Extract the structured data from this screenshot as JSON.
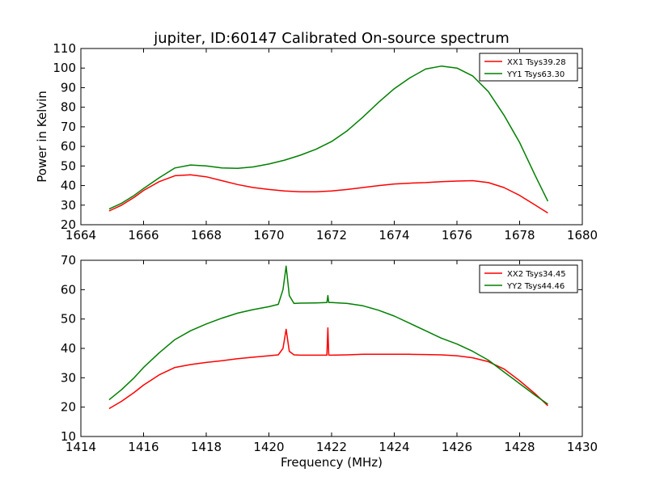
{
  "chart_data": [
    {
      "type": "line",
      "title": "jupiter, ID:60147 Calibrated On-source spectrum",
      "xlabel": "",
      "ylabel": "Power in Kelvin",
      "xlim": [
        1664,
        1680
      ],
      "ylim": [
        20,
        110
      ],
      "xticks": [
        1664,
        1666,
        1668,
        1670,
        1672,
        1674,
        1676,
        1678,
        1680
      ],
      "yticks": [
        20,
        30,
        40,
        50,
        60,
        70,
        80,
        90,
        100,
        110
      ],
      "grid": false,
      "legend_position": "top-right",
      "series": [
        {
          "name": "XX1 Tsys39.28",
          "color": "#ff0000",
          "x": [
            1664.9,
            1665.3,
            1665.7,
            1666.0,
            1666.5,
            1667.0,
            1667.5,
            1668.0,
            1668.5,
            1669.0,
            1669.5,
            1670.0,
            1670.5,
            1671.0,
            1671.5,
            1672.0,
            1672.5,
            1673.0,
            1673.5,
            1674.0,
            1674.5,
            1675.0,
            1675.5,
            1676.0,
            1676.5,
            1677.0,
            1677.5,
            1678.0,
            1678.5,
            1678.9
          ],
          "y": [
            27,
            30,
            34,
            37.5,
            42,
            45,
            45.5,
            44.5,
            42.5,
            40.5,
            39,
            38,
            37.2,
            36.8,
            36.8,
            37.2,
            38,
            39,
            40,
            40.8,
            41.2,
            41.5,
            42,
            42.3,
            42.5,
            41.5,
            39,
            35,
            30,
            26
          ]
        },
        {
          "name": "YY1 Tsys63.30",
          "color": "#008000",
          "x": [
            1664.9,
            1665.3,
            1665.7,
            1666.0,
            1666.5,
            1667.0,
            1667.5,
            1668.0,
            1668.5,
            1669.0,
            1669.5,
            1670.0,
            1670.5,
            1671.0,
            1671.5,
            1672.0,
            1672.5,
            1673.0,
            1673.5,
            1674.0,
            1674.5,
            1675.0,
            1675.5,
            1676.0,
            1676.5,
            1677.0,
            1677.5,
            1678.0,
            1678.5,
            1678.9
          ],
          "y": [
            28,
            31,
            35,
            38.5,
            44,
            49,
            50.5,
            50,
            49,
            48.8,
            49.5,
            51,
            53,
            55.5,
            58.5,
            62.5,
            68,
            75,
            82.5,
            89.5,
            95,
            99.5,
            101,
            100,
            96,
            88,
            76,
            62,
            45,
            32
          ]
        }
      ]
    },
    {
      "type": "line",
      "title": "",
      "xlabel": "Frequency (MHz)",
      "ylabel": "",
      "xlim": [
        1414,
        1430
      ],
      "ylim": [
        10,
        70
      ],
      "xticks": [
        1414,
        1416,
        1418,
        1420,
        1422,
        1424,
        1426,
        1428,
        1430
      ],
      "yticks": [
        10,
        20,
        30,
        40,
        50,
        60,
        70
      ],
      "grid": false,
      "legend_position": "top-right",
      "series": [
        {
          "name": "XX2 Tsys34.45",
          "color": "#ff0000",
          "x": [
            1414.9,
            1415.3,
            1415.7,
            1416.0,
            1416.5,
            1417.0,
            1417.5,
            1418.0,
            1418.5,
            1419.0,
            1419.5,
            1420.0,
            1420.3,
            1420.45,
            1420.55,
            1420.65,
            1420.8,
            1421.0,
            1421.5,
            1421.85,
            1421.88,
            1421.91,
            1422.0,
            1422.5,
            1423.0,
            1423.5,
            1424.0,
            1424.5,
            1425.0,
            1425.5,
            1426.0,
            1426.5,
            1427.0,
            1427.5,
            1428.0,
            1428.5,
            1428.9
          ],
          "y": [
            19.5,
            22,
            25,
            27.5,
            31,
            33.5,
            34.5,
            35.2,
            35.8,
            36.5,
            37,
            37.5,
            37.8,
            40,
            46.5,
            39,
            37.8,
            37.7,
            37.7,
            37.7,
            47,
            37.7,
            37.7,
            37.8,
            38,
            38,
            38,
            38,
            37.9,
            37.8,
            37.5,
            36.8,
            35.5,
            33,
            29,
            24.5,
            20.5
          ]
        },
        {
          "name": "YY2 Tsys44.46",
          "color": "#008000",
          "x": [
            1414.9,
            1415.3,
            1415.7,
            1416.0,
            1416.5,
            1417.0,
            1417.5,
            1418.0,
            1418.5,
            1419.0,
            1419.5,
            1420.0,
            1420.3,
            1420.45,
            1420.55,
            1420.65,
            1420.8,
            1421.0,
            1421.5,
            1421.85,
            1421.88,
            1421.91,
            1422.0,
            1422.5,
            1423.0,
            1423.5,
            1424.0,
            1424.5,
            1425.0,
            1425.5,
            1426.0,
            1426.5,
            1427.0,
            1427.5,
            1428.0,
            1428.5,
            1428.9
          ],
          "y": [
            22.5,
            26,
            30,
            33.5,
            38.5,
            43,
            46,
            48.3,
            50.3,
            52,
            53.2,
            54.2,
            55,
            60,
            68,
            58,
            55.3,
            55.4,
            55.5,
            55.6,
            58,
            55.6,
            55.6,
            55.3,
            54.5,
            53,
            51,
            48.5,
            46,
            43.5,
            41.5,
            39,
            36,
            32,
            28,
            24,
            21
          ]
        }
      ]
    }
  ]
}
